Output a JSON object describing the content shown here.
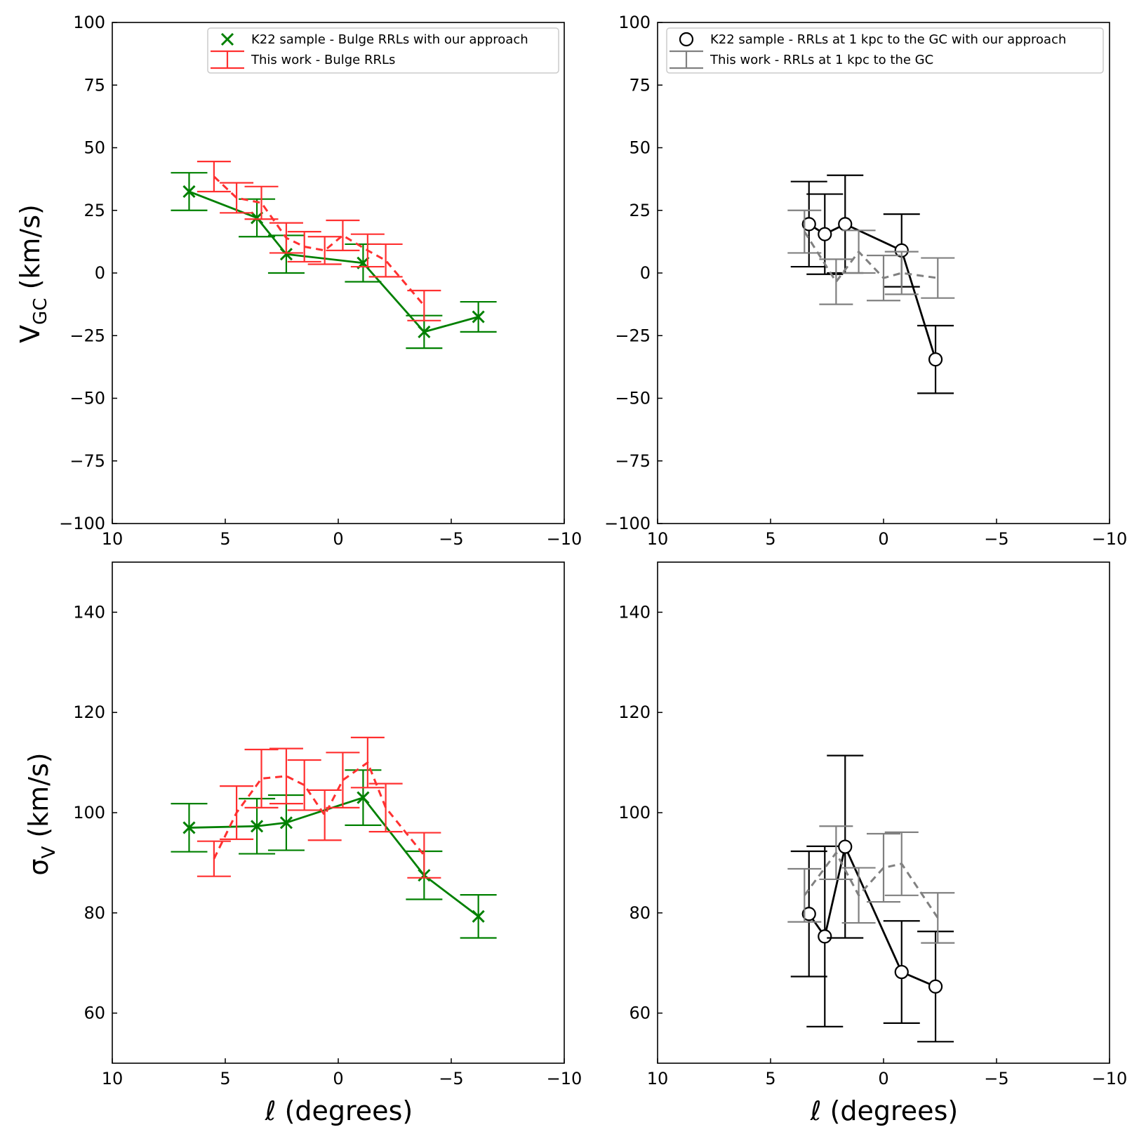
{
  "figure": {
    "xlabel": "ℓ (degrees)",
    "ylabel_top_main": "V",
    "ylabel_top_sub": "GC",
    "ylabel_top_unit": " (km/s)",
    "ylabel_bottom_main": "σ",
    "ylabel_bottom_sub": "V",
    "ylabel_bottom_unit": " (km/s)"
  },
  "chart_data": [
    {
      "type": "line",
      "panel": "top-left",
      "xlim": [
        10,
        -10
      ],
      "ylim": [
        -100,
        100
      ],
      "xticks": [
        10,
        5,
        0,
        -5,
        -10
      ],
      "yticks": [
        -100,
        -75,
        -50,
        -25,
        0,
        25,
        50,
        75,
        100
      ],
      "grid": false,
      "legend": "top-right",
      "series": [
        {
          "name": "K22 sample - Bulge RRLs with our approach",
          "color": "#008000",
          "marker": "x",
          "linestyle": "solid",
          "points": [
            {
              "x": 6.6,
              "y": 32.5,
              "err": 7.5
            },
            {
              "x": 3.6,
              "y": 22,
              "err": 7.5
            },
            {
              "x": 2.3,
              "y": 7.5,
              "err": 7.5
            },
            {
              "x": -1.1,
              "y": 4,
              "err": 7.5
            },
            {
              "x": -3.8,
              "y": -23.5,
              "err": 6.5
            },
            {
              "x": -6.2,
              "y": -17.5,
              "err": 6
            }
          ]
        },
        {
          "name": "This work - Bulge RRLs",
          "color": "#ff3030",
          "marker": "none",
          "linestyle": "dashed",
          "points": [
            {
              "x": 5.5,
              "y": 38.5,
              "err": 6
            },
            {
              "x": 4.5,
              "y": 30,
              "err": 6
            },
            {
              "x": 3.4,
              "y": 28,
              "err": 6.5
            },
            {
              "x": 2.3,
              "y": 14,
              "err": 6
            },
            {
              "x": 1.5,
              "y": 10.5,
              "err": 6
            },
            {
              "x": 0.6,
              "y": 9,
              "err": 5.5
            },
            {
              "x": -0.2,
              "y": 15,
              "err": 6
            },
            {
              "x": -1.3,
              "y": 9,
              "err": 6.5
            },
            {
              "x": -2.1,
              "y": 5,
              "err": 6.5
            },
            {
              "x": -3.8,
              "y": -13,
              "err": 6
            }
          ]
        }
      ]
    },
    {
      "type": "line",
      "panel": "top-right",
      "xlim": [
        10,
        -10
      ],
      "ylim": [
        -100,
        100
      ],
      "xticks": [
        10,
        5,
        0,
        -5,
        -10
      ],
      "yticks": [
        -100,
        -75,
        -50,
        -25,
        0,
        25,
        50,
        75,
        100
      ],
      "grid": false,
      "legend": "top-right",
      "series": [
        {
          "name": "K22 sample - RRLs at 1 kpc to the GC with our approach",
          "color": "#000000",
          "marker": "o",
          "linestyle": "solid",
          "points": [
            {
              "x": 3.3,
              "y": 19.5,
              "err": 17
            },
            {
              "x": 2.6,
              "y": 15.5,
              "err": 16
            },
            {
              "x": 1.7,
              "y": 19.5,
              "err": 19.5
            },
            {
              "x": -0.8,
              "y": 9,
              "err": 14.5
            },
            {
              "x": -2.3,
              "y": -34.5,
              "err": 13.5
            }
          ]
        },
        {
          "name": "This work - RRLs at 1 kpc to the GC",
          "color": "#808080",
          "marker": "none",
          "linestyle": "dashed",
          "points": [
            {
              "x": 3.5,
              "y": 16.5,
              "err": 8.5
            },
            {
              "x": 2.1,
              "y": -3.5,
              "err": 9
            },
            {
              "x": 1.1,
              "y": 8.5,
              "err": 8.5
            },
            {
              "x": 0,
              "y": -2,
              "err": 9
            },
            {
              "x": -0.8,
              "y": 0,
              "err": 8.5
            },
            {
              "x": -2.4,
              "y": -2,
              "err": 8
            }
          ]
        }
      ]
    },
    {
      "type": "line",
      "panel": "bottom-left",
      "xlim": [
        10,
        -10
      ],
      "ylim": [
        50,
        150
      ],
      "xticks": [
        10,
        5,
        0,
        -5,
        -10
      ],
      "yticks": [
        60,
        80,
        100,
        120,
        140
      ],
      "grid": false,
      "series": [
        {
          "name": "K22 sample - Bulge RRLs with our approach",
          "color": "#008000",
          "marker": "x",
          "linestyle": "solid",
          "points": [
            {
              "x": 6.6,
              "y": 97,
              "err": 4.8
            },
            {
              "x": 3.6,
              "y": 97.3,
              "err": 5.5
            },
            {
              "x": 2.3,
              "y": 98,
              "err": 5.5
            },
            {
              "x": -1.1,
              "y": 103,
              "err": 5.5
            },
            {
              "x": -3.8,
              "y": 87.5,
              "err": 4.8
            },
            {
              "x": -6.2,
              "y": 79.3,
              "err": 4.3
            }
          ]
        },
        {
          "name": "This work - Bulge RRLs",
          "color": "#ff3030",
          "marker": "none",
          "linestyle": "dashed",
          "points": [
            {
              "x": 5.5,
              "y": 90.8,
              "err": 3.5
            },
            {
              "x": 4.5,
              "y": 100,
              "err": 5.3
            },
            {
              "x": 3.4,
              "y": 106.8,
              "err": 5.8
            },
            {
              "x": 2.3,
              "y": 107.3,
              "err": 5.5
            },
            {
              "x": 1.5,
              "y": 105.5,
              "err": 5
            },
            {
              "x": 0.6,
              "y": 99.5,
              "err": 5
            },
            {
              "x": -0.2,
              "y": 106.5,
              "err": 5.5
            },
            {
              "x": -1.3,
              "y": 110,
              "err": 5
            },
            {
              "x": -2.1,
              "y": 101,
              "err": 4.8
            },
            {
              "x": -3.8,
              "y": 91.5,
              "err": 4.5
            }
          ]
        }
      ]
    },
    {
      "type": "line",
      "panel": "bottom-right",
      "xlim": [
        10,
        -10
      ],
      "ylim": [
        50,
        150
      ],
      "xticks": [
        10,
        5,
        0,
        -5,
        -10
      ],
      "yticks": [
        60,
        80,
        100,
        120,
        140
      ],
      "grid": false,
      "series": [
        {
          "name": "K22 sample - RRLs at 1 kpc to the GC with our approach",
          "color": "#000000",
          "marker": "o",
          "linestyle": "solid",
          "points": [
            {
              "x": 3.3,
              "y": 79.8,
              "err": 12.5
            },
            {
              "x": 2.6,
              "y": 75.3,
              "err": 18
            },
            {
              "x": 1.7,
              "y": 93.2,
              "err": 18.2
            },
            {
              "x": -0.8,
              "y": 68.2,
              "err": 10.2
            },
            {
              "x": -2.3,
              "y": 65.3,
              "err": 11
            }
          ]
        },
        {
          "name": "This work - RRLs at 1 kpc to the GC",
          "color": "#808080",
          "marker": "none",
          "linestyle": "dashed",
          "points": [
            {
              "x": 3.5,
              "y": 83.5,
              "err": 5.3
            },
            {
              "x": 2.1,
              "y": 92,
              "err": 5.3
            },
            {
              "x": 1.1,
              "y": 83.5,
              "err": 5.5
            },
            {
              "x": 0,
              "y": 89,
              "err": 6.8
            },
            {
              "x": -0.8,
              "y": 89.8,
              "err": 6.3
            },
            {
              "x": -2.4,
              "y": 79,
              "err": 5
            }
          ]
        }
      ]
    }
  ]
}
